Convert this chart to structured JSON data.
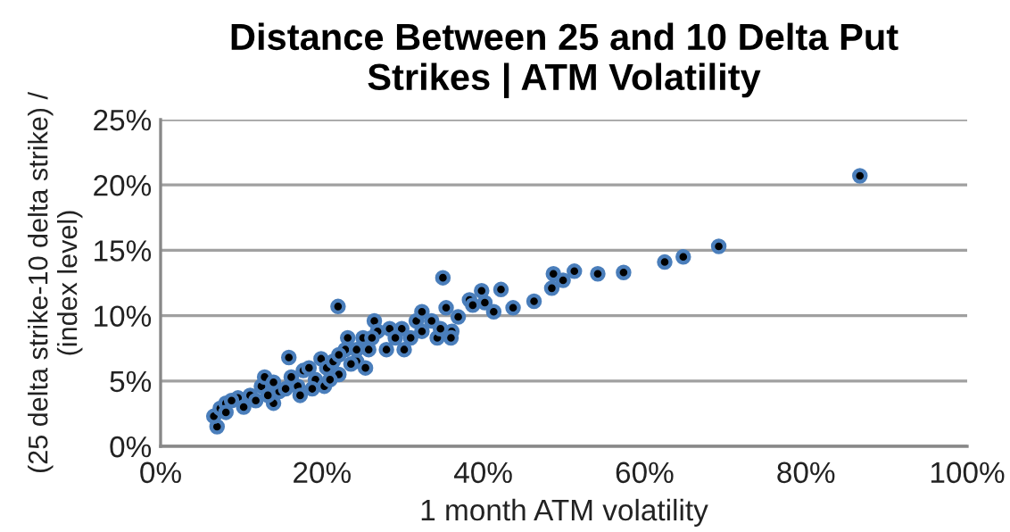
{
  "chart_data": {
    "type": "scatter",
    "title": "Distance Between 25 and 10 Delta Put\nStrikes | ATM Volatility",
    "xlabel": "1 month ATM volatility",
    "ylabel": "(25 delta strike-10 delta strike) /\n(index level)",
    "xlim": [
      0,
      100
    ],
    "ylim": [
      0,
      25
    ],
    "xticks": [
      {
        "value": 0,
        "label": "0%"
      },
      {
        "value": 20,
        "label": "20%"
      },
      {
        "value": 40,
        "label": "40%"
      },
      {
        "value": 60,
        "label": "60%"
      },
      {
        "value": 80,
        "label": "80%"
      },
      {
        "value": 100,
        "label": "100%"
      }
    ],
    "yticks": [
      {
        "value": 0,
        "label": "0%"
      },
      {
        "value": 5,
        "label": "5%"
      },
      {
        "value": 10,
        "label": "10%"
      },
      {
        "value": 15,
        "label": "15%"
      },
      {
        "value": 20,
        "label": "20%"
      },
      {
        "value": 25,
        "label": "25%"
      }
    ],
    "grid": "y",
    "marker": "circle",
    "series": [
      {
        "color": "#4a7ebb",
        "x": [
          7.0,
          6.6,
          7.4,
          8.1,
          9.6,
          11.1,
          12.5,
          12.9,
          14.0,
          14.7,
          15.9,
          17.0,
          17.7,
          19.2,
          19.9,
          20.6,
          22.0,
          22.1,
          22.9,
          23.2,
          24.3,
          25.1,
          26.5,
          26.9,
          28.0,
          28.4,
          29.9,
          30.2,
          31.7,
          32.4,
          34.3,
          35.0,
          35.4,
          36.1,
          36.9,
          38.3,
          38.7,
          39.8,
          40.2,
          41.3,
          42.2,
          43.7,
          8.1,
          8.8,
          10.3,
          11.8,
          13.3,
          14.0,
          15.5,
          16.2,
          17.3,
          18.4,
          18.8,
          20.3,
          21.0,
          21.4,
          22.1,
          23.6,
          24.3,
          25.4,
          25.8,
          26.2,
          29.1,
          31.0,
          32.4,
          33.6,
          34.7,
          36.0,
          46.3,
          48.5,
          48.7,
          49.9,
          51.3,
          54.2,
          57.4,
          62.5,
          64.8,
          69.2,
          86.7
        ],
        "values": [
          1.5,
          2.3,
          2.9,
          3.3,
          3.7,
          3.9,
          4.6,
          5.3,
          3.3,
          4.2,
          6.8,
          4.6,
          5.8,
          5.1,
          6.7,
          6.0,
          10.7,
          5.5,
          7.4,
          8.3,
          6.5,
          8.3,
          9.6,
          8.8,
          7.4,
          9.0,
          9.0,
          7.4,
          9.6,
          10.3,
          8.3,
          12.9,
          10.6,
          8.8,
          9.9,
          11.2,
          10.8,
          11.9,
          11.0,
          10.3,
          12.0,
          10.6,
          2.6,
          3.5,
          3.0,
          3.5,
          3.9,
          4.9,
          4.4,
          5.3,
          3.9,
          6.0,
          4.4,
          4.6,
          5.1,
          6.5,
          7.0,
          6.3,
          7.4,
          6.0,
          7.4,
          8.3,
          8.3,
          8.3,
          8.8,
          9.6,
          9.0,
          8.3,
          11.1,
          12.1,
          13.2,
          12.7,
          13.4,
          13.2,
          13.3,
          14.1,
          14.5,
          15.3,
          20.7
        ]
      }
    ]
  }
}
